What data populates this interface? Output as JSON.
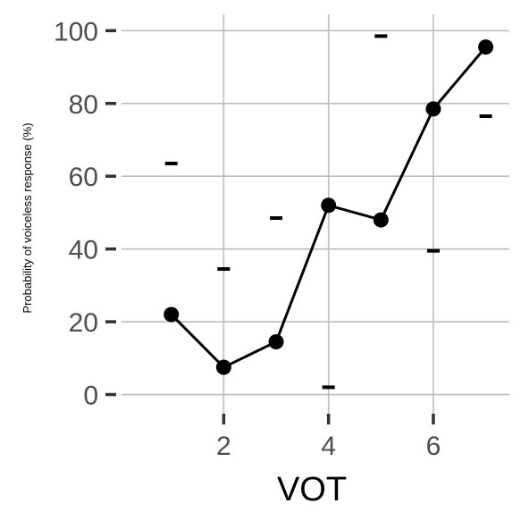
{
  "chart_data": {
    "type": "line",
    "xlabel": "VOT",
    "ylabel": "Probability of voiceless response (%)",
    "xlim": [
      0.05,
      7.45
    ],
    "ylim": [
      -6.5,
      104.5
    ],
    "x_ticks": [
      2,
      4,
      6
    ],
    "y_ticks": [
      0,
      20,
      40,
      60,
      80,
      100
    ],
    "grid": true,
    "legend": "none",
    "colors": {
      "line": "#000000",
      "grid": "#bdbdbd",
      "tick_mark": "#333333"
    },
    "series": [
      {
        "x": [
          1,
          2,
          3,
          4,
          5,
          6,
          7
        ],
        "y": [
          22,
          7.5,
          14.5,
          52,
          48,
          78.5,
          95.5
        ]
      }
    ],
    "dash_markers": [
      {
        "x": 1,
        "y": 63.5
      },
      {
        "x": 2,
        "y": 34.5
      },
      {
        "x": 3,
        "y": 48.5
      },
      {
        "x": 4,
        "y": 2
      },
      {
        "x": 5,
        "y": 98.5
      },
      {
        "x": 6,
        "y": 39.5
      },
      {
        "x": 7,
        "y": 76.5
      }
    ]
  }
}
